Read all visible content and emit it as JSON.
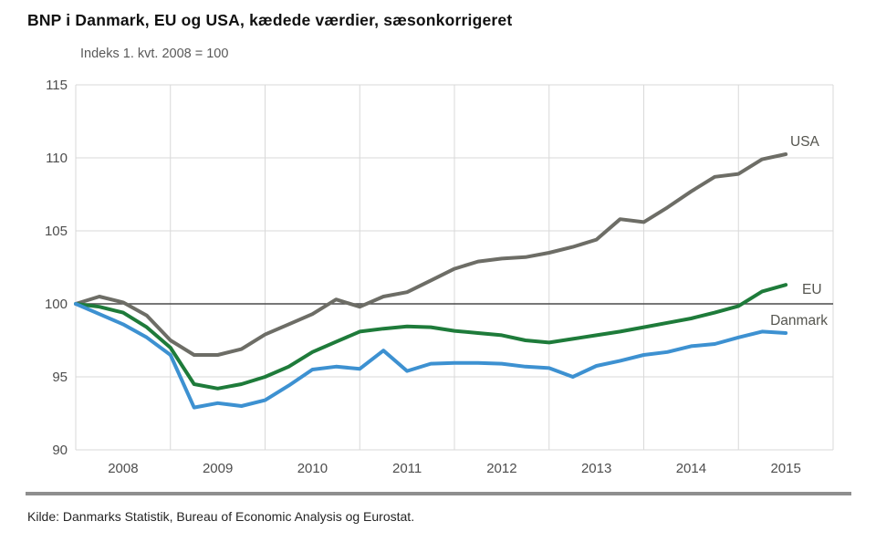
{
  "chart_data": {
    "type": "line",
    "title": "BNP i Danmark, EU og USA, kædede værdier, sæsonkorrigeret",
    "subtitle": "Indeks 1. kvt. 2008 = 100",
    "source": "Kilde: Danmarks Statistik, Bureau of Economic Analysis og Eurostat.",
    "x_unit": "quarter",
    "x_start": "2008-Q1",
    "x_end": "2015-Q3",
    "x_tick_labels": [
      "2008",
      "2009",
      "2010",
      "2011",
      "2012",
      "2013",
      "2014",
      "2015"
    ],
    "x_axis_years_shown": [
      2008,
      2016
    ],
    "y_ticks": [
      90,
      95,
      100,
      105,
      110,
      115
    ],
    "ylim": [
      90,
      115
    ],
    "reference_line": 100,
    "grid": true,
    "legend_position": "end-of-line-labels",
    "colors": {
      "grid": "#d9d9d9",
      "reference_line": "#4a4a4a",
      "tick_label": "#4d4d4d",
      "series_label": "#55554f"
    },
    "series": [
      {
        "name": "USA",
        "color": "#6d6d66",
        "values": [
          100.0,
          100.5,
          100.1,
          99.2,
          97.5,
          96.5,
          96.5,
          96.9,
          97.9,
          98.6,
          99.3,
          100.3,
          99.8,
          100.5,
          100.8,
          101.6,
          102.4,
          102.9,
          103.1,
          103.2,
          103.5,
          103.9,
          104.4,
          105.8,
          105.6,
          106.6,
          107.7,
          108.7,
          108.9,
          109.9,
          110.25
        ]
      },
      {
        "name": "EU",
        "color": "#1e7b3a",
        "values": [
          100.0,
          99.8,
          99.4,
          98.4,
          97.0,
          94.5,
          94.2,
          94.5,
          95.0,
          95.7,
          96.7,
          97.4,
          98.1,
          98.3,
          98.45,
          98.4,
          98.15,
          98.0,
          97.85,
          97.5,
          97.35,
          97.6,
          97.85,
          98.1,
          98.4,
          98.7,
          99.0,
          99.4,
          99.85,
          100.85,
          101.3
        ]
      },
      {
        "name": "Danmark",
        "color": "#3d91d1",
        "values": [
          100.0,
          99.3,
          98.6,
          97.7,
          96.5,
          92.9,
          93.2,
          93.0,
          93.4,
          94.4,
          95.5,
          95.7,
          95.55,
          96.8,
          95.4,
          95.9,
          95.95,
          95.95,
          95.9,
          95.7,
          95.6,
          95.0,
          95.75,
          96.1,
          96.5,
          96.7,
          97.1,
          97.25,
          97.7,
          98.1,
          98.0
        ]
      }
    ]
  }
}
